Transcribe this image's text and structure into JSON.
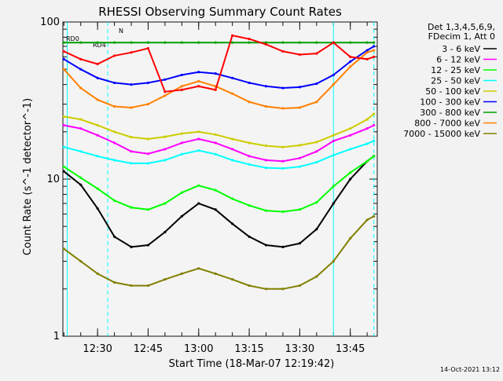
{
  "chart_data": {
    "type": "line",
    "title": "RHESSI Observing Summary Count Rates",
    "xlabel": "Start Time (18-Mar-07 12:19:42)",
    "ylabel": "Count Rate (s^-1 detector^-1)",
    "y_scale": "log",
    "ylim": [
      1,
      100
    ],
    "x_ticks": [
      "12:30",
      "12:45",
      "13:00",
      "13:15",
      "13:30",
      "13:45"
    ],
    "y_ticks": [
      "1",
      "10",
      "100"
    ],
    "legend_header": [
      "Det 1,3,4,5,6,9,",
      "FDecim 1, Att 0"
    ],
    "series": [
      {
        "name": "3 - 6 keV",
        "color": "#000000",
        "values": [
          [
            "12:20",
            11.2
          ],
          [
            "12:25",
            9.2
          ],
          [
            "12:30",
            6.5
          ],
          [
            "12:35",
            4.3
          ],
          [
            "12:40",
            3.7
          ],
          [
            "12:45",
            3.8
          ],
          [
            "12:50",
            4.6
          ],
          [
            "12:55",
            5.8
          ],
          [
            "13:00",
            7.0
          ],
          [
            "13:05",
            6.4
          ],
          [
            "13:10",
            5.2
          ],
          [
            "13:15",
            4.3
          ],
          [
            "13:20",
            3.8
          ],
          [
            "13:25",
            3.7
          ],
          [
            "13:30",
            3.9
          ],
          [
            "13:35",
            4.8
          ],
          [
            "13:40",
            7.0
          ],
          [
            "13:45",
            10.0
          ],
          [
            "13:50",
            13.0
          ],
          [
            "13:52",
            14.0
          ]
        ]
      },
      {
        "name": "6 - 12 keV",
        "color": "#ff00ff",
        "values": [
          [
            "12:20",
            22.0
          ],
          [
            "12:25",
            21.0
          ],
          [
            "12:30",
            19.0
          ],
          [
            "12:35",
            17.0
          ],
          [
            "12:40",
            15.0
          ],
          [
            "12:45",
            14.5
          ],
          [
            "12:50",
            15.5
          ],
          [
            "12:55",
            17.0
          ],
          [
            "13:00",
            18.0
          ],
          [
            "13:05",
            17.0
          ],
          [
            "13:10",
            15.5
          ],
          [
            "13:15",
            14.0
          ],
          [
            "13:20",
            13.2
          ],
          [
            "13:25",
            13.0
          ],
          [
            "13:30",
            13.6
          ],
          [
            "13:35",
            15.0
          ],
          [
            "13:40",
            17.5
          ],
          [
            "13:45",
            19.0
          ],
          [
            "13:50",
            21.0
          ],
          [
            "13:52",
            22.0
          ]
        ]
      },
      {
        "name": "12 - 25 keV",
        "color": "#00ff00",
        "values": [
          [
            "12:20",
            12.0
          ],
          [
            "12:25",
            10.2
          ],
          [
            "12:30",
            8.7
          ],
          [
            "12:35",
            7.3
          ],
          [
            "12:40",
            6.6
          ],
          [
            "12:45",
            6.4
          ],
          [
            "12:50",
            7.0
          ],
          [
            "12:55",
            8.2
          ],
          [
            "13:00",
            9.1
          ],
          [
            "13:05",
            8.5
          ],
          [
            "13:10",
            7.5
          ],
          [
            "13:15",
            6.8
          ],
          [
            "13:20",
            6.3
          ],
          [
            "13:25",
            6.2
          ],
          [
            "13:30",
            6.4
          ],
          [
            "13:35",
            7.1
          ],
          [
            "13:40",
            9.0
          ],
          [
            "13:45",
            11.0
          ],
          [
            "13:50",
            13.0
          ],
          [
            "13:52",
            14.0
          ]
        ]
      },
      {
        "name": "25 - 50 keV",
        "color": "#00ffff",
        "values": [
          [
            "12:20",
            16.0
          ],
          [
            "12:25",
            15.0
          ],
          [
            "12:30",
            14.0
          ],
          [
            "12:35",
            13.2
          ],
          [
            "12:40",
            12.6
          ],
          [
            "12:45",
            12.6
          ],
          [
            "12:50",
            13.2
          ],
          [
            "12:55",
            14.4
          ],
          [
            "13:00",
            15.2
          ],
          [
            "13:05",
            14.4
          ],
          [
            "13:10",
            13.2
          ],
          [
            "13:15",
            12.4
          ],
          [
            "13:20",
            11.8
          ],
          [
            "13:25",
            11.7
          ],
          [
            "13:30",
            12.0
          ],
          [
            "13:35",
            12.8
          ],
          [
            "13:40",
            14.2
          ],
          [
            "13:45",
            15.5
          ],
          [
            "13:50",
            16.8
          ],
          [
            "13:52",
            17.5
          ]
        ]
      },
      {
        "name": "50 - 100 keV",
        "color": "#cccc00",
        "values": [
          [
            "12:20",
            25.0
          ],
          [
            "12:25",
            24.0
          ],
          [
            "12:30",
            22.0
          ],
          [
            "12:35",
            20.0
          ],
          [
            "12:40",
            18.5
          ],
          [
            "12:45",
            18.0
          ],
          [
            "12:50",
            18.6
          ],
          [
            "12:55",
            19.5
          ],
          [
            "13:00",
            20.0
          ],
          [
            "13:05",
            19.2
          ],
          [
            "13:10",
            18.0
          ],
          [
            "13:15",
            17.0
          ],
          [
            "13:20",
            16.3
          ],
          [
            "13:25",
            16.0
          ],
          [
            "13:30",
            16.4
          ],
          [
            "13:35",
            17.2
          ],
          [
            "13:40",
            19.0
          ],
          [
            "13:45",
            21.0
          ],
          [
            "13:50",
            24.0
          ],
          [
            "13:52",
            26.0
          ]
        ]
      },
      {
        "name": "100 - 300 keV",
        "color": "#0000ff",
        "values": [
          [
            "12:20",
            58.0
          ],
          [
            "12:25",
            50.0
          ],
          [
            "12:30",
            44.0
          ],
          [
            "12:35",
            41.0
          ],
          [
            "12:40",
            40.0
          ],
          [
            "12:45",
            41.0
          ],
          [
            "12:50",
            43.0
          ],
          [
            "12:55",
            46.0
          ],
          [
            "13:00",
            48.0
          ],
          [
            "13:05",
            47.0
          ],
          [
            "13:10",
            44.0
          ],
          [
            "13:15",
            41.0
          ],
          [
            "13:20",
            39.0
          ],
          [
            "13:25",
            38.0
          ],
          [
            "13:30",
            38.5
          ],
          [
            "13:35",
            40.5
          ],
          [
            "13:40",
            46.0
          ],
          [
            "13:45",
            56.0
          ],
          [
            "13:50",
            66.0
          ],
          [
            "13:52",
            70.0
          ]
        ]
      },
      {
        "name": "300 - 800 keV",
        "color": "#00a000",
        "values": [
          [
            "12:20",
            74.0
          ],
          [
            "12:25",
            74.0
          ],
          [
            "12:30",
            74.0
          ],
          [
            "12:35",
            74.0
          ],
          [
            "12:40",
            74.0
          ],
          [
            "12:45",
            74.0
          ],
          [
            "12:50",
            74.0
          ],
          [
            "12:55",
            74.0
          ],
          [
            "13:00",
            74.0
          ],
          [
            "13:05",
            74.0
          ],
          [
            "13:10",
            74.0
          ],
          [
            "13:15",
            74.0
          ],
          [
            "13:20",
            74.0
          ],
          [
            "13:25",
            74.0
          ],
          [
            "13:30",
            74.0
          ],
          [
            "13:35",
            74.0
          ],
          [
            "13:40",
            74.0
          ],
          [
            "13:45",
            74.0
          ],
          [
            "13:50",
            74.0
          ],
          [
            "13:52",
            74.0
          ]
        ]
      },
      {
        "name": "800 - 7000 keV",
        "color": "#ff8000",
        "values": [
          [
            "12:20",
            50.0
          ],
          [
            "12:25",
            38.0
          ],
          [
            "12:30",
            32.0
          ],
          [
            "12:35",
            29.0
          ],
          [
            "12:40",
            28.5
          ],
          [
            "12:45",
            30.0
          ],
          [
            "12:50",
            34.0
          ],
          [
            "12:55",
            39.0
          ],
          [
            "13:00",
            42.0
          ],
          [
            "13:05",
            39.0
          ],
          [
            "13:10",
            35.0
          ],
          [
            "13:15",
            31.0
          ],
          [
            "13:20",
            29.0
          ],
          [
            "13:25",
            28.2
          ],
          [
            "13:30",
            28.5
          ],
          [
            "13:35",
            31.0
          ],
          [
            "13:40",
            40.0
          ],
          [
            "13:45",
            52.0
          ],
          [
            "13:50",
            64.0
          ],
          [
            "13:52",
            66.0
          ]
        ]
      },
      {
        "name": "7000 - 15000 keV",
        "color": "#808000",
        "values": [
          [
            "12:20",
            3.6
          ],
          [
            "12:25",
            3.0
          ],
          [
            "12:30",
            2.5
          ],
          [
            "12:35",
            2.2
          ],
          [
            "12:40",
            2.1
          ],
          [
            "12:45",
            2.1
          ],
          [
            "12:50",
            2.3
          ],
          [
            "12:55",
            2.5
          ],
          [
            "13:00",
            2.7
          ],
          [
            "13:05",
            2.5
          ],
          [
            "13:10",
            2.3
          ],
          [
            "13:15",
            2.1
          ],
          [
            "13:20",
            2.0
          ],
          [
            "13:25",
            2.0
          ],
          [
            "13:30",
            2.1
          ],
          [
            "13:35",
            2.4
          ],
          [
            "13:40",
            3.0
          ],
          [
            "13:45",
            4.2
          ],
          [
            "13:50",
            5.5
          ],
          [
            "13:52",
            5.8
          ]
        ]
      }
    ],
    "extra_series": [
      {
        "name": "",
        "color": "#ff0000",
        "values": [
          [
            "12:20",
            65.0
          ],
          [
            "12:25",
            58.0
          ],
          [
            "12:30",
            54.0
          ],
          [
            "12:35",
            61.0
          ],
          [
            "12:40",
            64.0
          ],
          [
            "12:45",
            68.0
          ],
          [
            "12:50",
            36.0
          ],
          [
            "12:55",
            37.0
          ],
          [
            "13:00",
            39.0
          ],
          [
            "13:05",
            37.0
          ],
          [
            "13:10",
            82.0
          ],
          [
            "13:15",
            78.0
          ],
          [
            "13:20",
            72.0
          ],
          [
            "13:25",
            65.0
          ],
          [
            "13:30",
            62.0
          ],
          [
            "13:35",
            63.0
          ],
          [
            "13:40",
            74.0
          ],
          [
            "13:45",
            60.0
          ],
          [
            "13:50",
            58.0
          ],
          [
            "13:52",
            60.0
          ]
        ]
      }
    ],
    "annotations": [
      "RD0",
      "RD4",
      "N"
    ],
    "footer": "14-Oct-2021 13:12"
  }
}
